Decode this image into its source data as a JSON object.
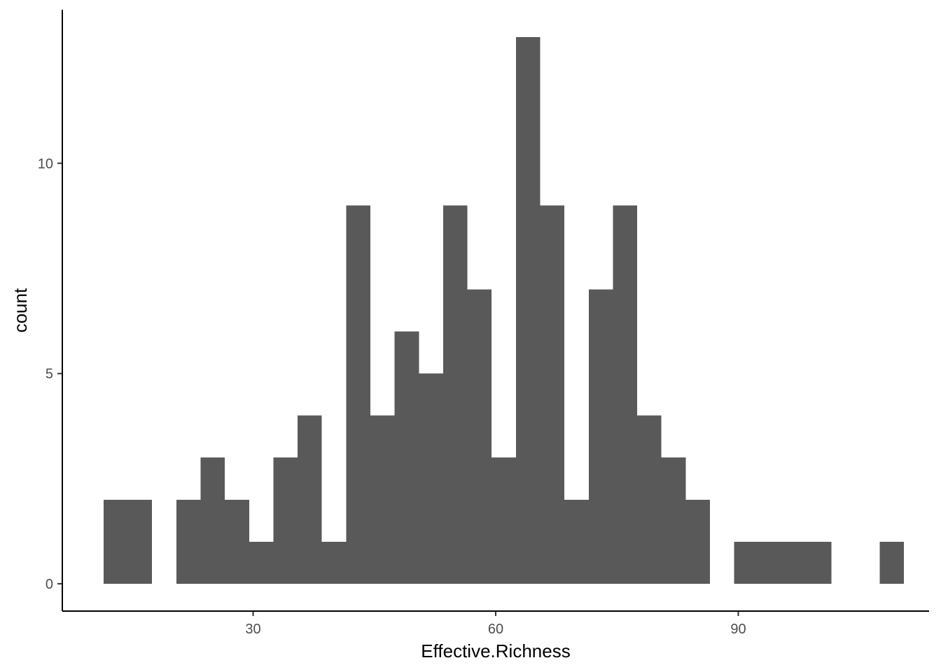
{
  "chart_data": {
    "type": "bar",
    "subtype": "histogram",
    "xlabel": "Effective.Richness",
    "ylabel": "count",
    "xlim": [
      6.4,
      113.6
    ],
    "ylim": [
      -0.65,
      13.65
    ],
    "x_ticks": [
      30,
      60,
      90
    ],
    "y_ticks": [
      0,
      5,
      10
    ],
    "bin_width": 3.0,
    "bins": [
      {
        "start": 11.5,
        "end": 14.5,
        "count": 2
      },
      {
        "start": 14.5,
        "end": 17.5,
        "count": 2
      },
      {
        "start": 17.5,
        "end": 20.5,
        "count": 0
      },
      {
        "start": 20.5,
        "end": 23.5,
        "count": 2
      },
      {
        "start": 23.5,
        "end": 26.5,
        "count": 3
      },
      {
        "start": 26.5,
        "end": 29.5,
        "count": 2
      },
      {
        "start": 29.5,
        "end": 32.5,
        "count": 1
      },
      {
        "start": 32.5,
        "end": 35.5,
        "count": 3
      },
      {
        "start": 35.5,
        "end": 38.5,
        "count": 4
      },
      {
        "start": 38.5,
        "end": 41.5,
        "count": 1
      },
      {
        "start": 41.5,
        "end": 44.5,
        "count": 9
      },
      {
        "start": 44.5,
        "end": 47.5,
        "count": 4
      },
      {
        "start": 47.5,
        "end": 50.5,
        "count": 6
      },
      {
        "start": 50.5,
        "end": 53.5,
        "count": 5
      },
      {
        "start": 53.5,
        "end": 56.5,
        "count": 9
      },
      {
        "start": 56.5,
        "end": 59.5,
        "count": 7
      },
      {
        "start": 59.5,
        "end": 62.5,
        "count": 3
      },
      {
        "start": 62.5,
        "end": 65.5,
        "count": 13
      },
      {
        "start": 65.5,
        "end": 68.5,
        "count": 9
      },
      {
        "start": 68.5,
        "end": 71.5,
        "count": 2
      },
      {
        "start": 71.5,
        "end": 74.5,
        "count": 7
      },
      {
        "start": 74.5,
        "end": 77.5,
        "count": 9
      },
      {
        "start": 77.5,
        "end": 80.5,
        "count": 4
      },
      {
        "start": 80.5,
        "end": 83.5,
        "count": 3
      },
      {
        "start": 83.5,
        "end": 86.5,
        "count": 2
      },
      {
        "start": 86.5,
        "end": 89.5,
        "count": 0
      },
      {
        "start": 89.5,
        "end": 92.5,
        "count": 1
      },
      {
        "start": 92.5,
        "end": 95.5,
        "count": 1
      },
      {
        "start": 95.5,
        "end": 98.5,
        "count": 1
      },
      {
        "start": 98.5,
        "end": 101.5,
        "count": 1
      },
      {
        "start": 101.5,
        "end": 104.5,
        "count": 0
      },
      {
        "start": 104.5,
        "end": 107.5,
        "count": 0
      },
      {
        "start": 107.5,
        "end": 110.5,
        "count": 1
      }
    ],
    "bar_color": "#595959",
    "axis_color": "#000000",
    "grid": false,
    "legend": "none"
  }
}
